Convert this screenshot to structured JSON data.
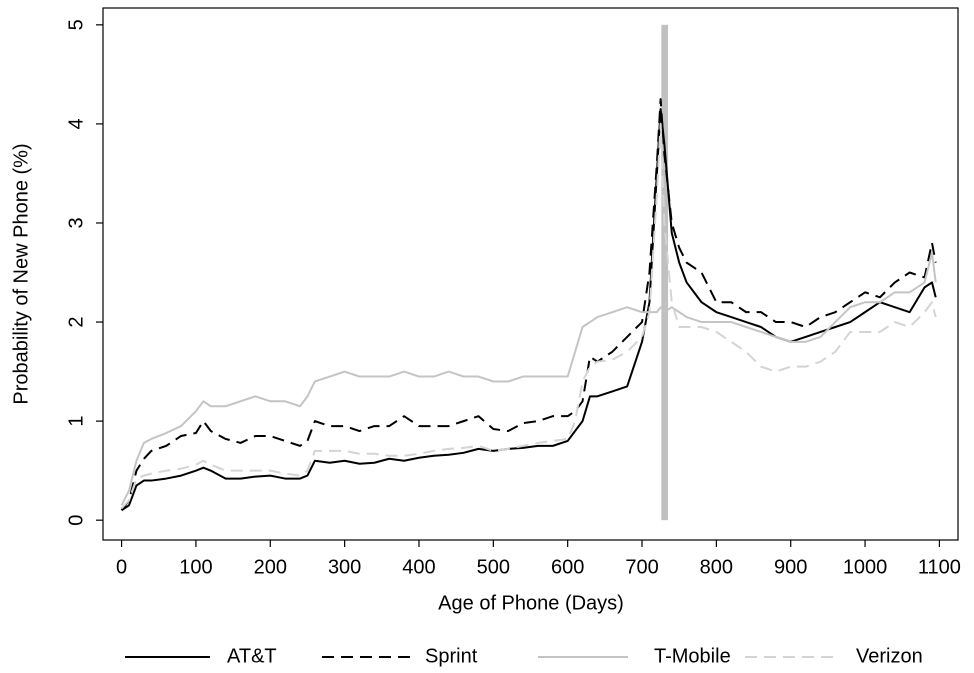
{
  "chart_data": {
    "type": "line",
    "x_label": "Age of Phone (Days)",
    "y_label": "Probability of New Phone (%)",
    "xlim": [
      -25,
      1125
    ],
    "ylim": [
      -0.2,
      5.17
    ],
    "xticks": [
      0,
      100,
      200,
      300,
      400,
      500,
      600,
      700,
      800,
      900,
      1000,
      1100
    ],
    "yticks": [
      0,
      1,
      2,
      3,
      4,
      5
    ],
    "grid": false,
    "legend": "bottom",
    "shaded_band": {
      "x": [
        726,
        735
      ],
      "y": [
        0,
        5
      ],
      "color": "#c0c0c0"
    },
    "x": [
      0,
      10,
      20,
      30,
      40,
      60,
      80,
      100,
      110,
      120,
      140,
      160,
      180,
      200,
      220,
      240,
      250,
      260,
      280,
      300,
      320,
      340,
      360,
      380,
      400,
      420,
      440,
      460,
      480,
      500,
      520,
      540,
      560,
      580,
      600,
      610,
      620,
      630,
      640,
      660,
      680,
      700,
      710,
      720,
      725,
      730,
      740,
      750,
      760,
      780,
      800,
      820,
      840,
      860,
      880,
      900,
      920,
      940,
      960,
      980,
      1000,
      1020,
      1040,
      1060,
      1080,
      1090,
      1095
    ],
    "series": [
      {
        "name": "AT&T",
        "color": "#000000",
        "dashed": false,
        "values": [
          0.1,
          0.15,
          0.35,
          0.4,
          0.4,
          0.42,
          0.45,
          0.5,
          0.53,
          0.5,
          0.42,
          0.42,
          0.44,
          0.45,
          0.42,
          0.42,
          0.45,
          0.6,
          0.58,
          0.6,
          0.57,
          0.58,
          0.62,
          0.6,
          0.63,
          0.65,
          0.66,
          0.68,
          0.72,
          0.7,
          0.72,
          0.73,
          0.75,
          0.75,
          0.8,
          0.9,
          1.0,
          1.25,
          1.25,
          1.3,
          1.35,
          1.8,
          2.2,
          3.5,
          4.15,
          3.8,
          2.9,
          2.6,
          2.4,
          2.2,
          2.1,
          2.05,
          2.0,
          1.95,
          1.85,
          1.8,
          1.85,
          1.9,
          1.95,
          2.0,
          2.1,
          2.2,
          2.15,
          2.1,
          2.35,
          2.4,
          2.25
        ]
      },
      {
        "name": "Sprint",
        "color": "#000000",
        "dashed": true,
        "values": [
          0.1,
          0.2,
          0.5,
          0.62,
          0.7,
          0.75,
          0.85,
          0.88,
          1.0,
          0.9,
          0.82,
          0.78,
          0.85,
          0.85,
          0.8,
          0.75,
          0.8,
          1.0,
          0.95,
          0.95,
          0.9,
          0.95,
          0.95,
          1.05,
          0.95,
          0.95,
          0.95,
          1.0,
          1.05,
          0.92,
          0.9,
          0.98,
          1.0,
          1.05,
          1.05,
          1.1,
          1.2,
          1.65,
          1.6,
          1.7,
          1.85,
          2.0,
          2.5,
          3.6,
          4.25,
          3.7,
          3.0,
          2.75,
          2.6,
          2.5,
          2.2,
          2.2,
          2.1,
          2.1,
          2.0,
          2.0,
          1.95,
          2.05,
          2.1,
          2.2,
          2.3,
          2.25,
          2.4,
          2.5,
          2.45,
          2.8,
          2.6
        ]
      },
      {
        "name": "T-Mobile",
        "color": "#c4c4c4",
        "dashed": false,
        "values": [
          0.15,
          0.3,
          0.6,
          0.78,
          0.82,
          0.88,
          0.95,
          1.1,
          1.2,
          1.15,
          1.15,
          1.2,
          1.25,
          1.2,
          1.2,
          1.15,
          1.25,
          1.4,
          1.45,
          1.5,
          1.45,
          1.45,
          1.45,
          1.5,
          1.45,
          1.45,
          1.5,
          1.45,
          1.45,
          1.4,
          1.4,
          1.45,
          1.45,
          1.45,
          1.45,
          1.7,
          1.95,
          2.0,
          2.05,
          2.1,
          2.15,
          2.1,
          2.1,
          2.1,
          2.15,
          2.1,
          2.15,
          2.1,
          2.05,
          2.0,
          2.0,
          2.0,
          1.95,
          1.9,
          1.85,
          1.8,
          1.8,
          1.85,
          2.0,
          2.15,
          2.2,
          2.2,
          2.3,
          2.3,
          2.4,
          2.7,
          2.4
        ]
      },
      {
        "name": "Verizon",
        "color": "#d4d4d4",
        "dashed": true,
        "values": [
          0.12,
          0.2,
          0.42,
          0.45,
          0.47,
          0.5,
          0.52,
          0.56,
          0.6,
          0.56,
          0.5,
          0.5,
          0.5,
          0.5,
          0.47,
          0.45,
          0.5,
          0.7,
          0.7,
          0.7,
          0.67,
          0.67,
          0.65,
          0.65,
          0.67,
          0.7,
          0.72,
          0.73,
          0.75,
          0.7,
          0.72,
          0.75,
          0.78,
          0.8,
          0.82,
          1.0,
          1.4,
          1.55,
          1.6,
          1.62,
          1.7,
          1.85,
          2.1,
          3.3,
          4.0,
          3.0,
          2.2,
          1.95,
          1.95,
          1.95,
          1.9,
          1.8,
          1.7,
          1.55,
          1.5,
          1.55,
          1.55,
          1.6,
          1.7,
          1.9,
          1.9,
          1.9,
          2.0,
          1.95,
          2.1,
          2.2,
          2.05
        ]
      }
    ]
  }
}
